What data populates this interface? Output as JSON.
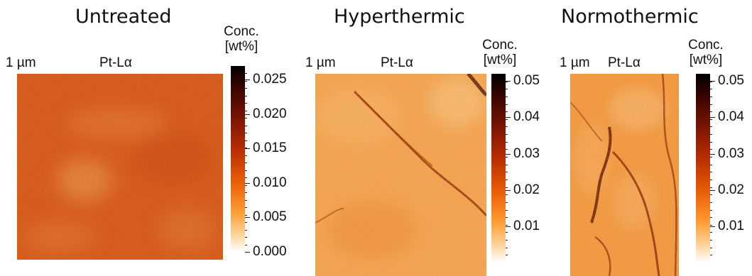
{
  "chart_data": [
    {
      "type": "heatmap",
      "title": "Untreated",
      "scale_bar": "1 µm",
      "map_label": "Pt-Lα",
      "colorbar_title": [
        "Conc.",
        "[wt%]"
      ],
      "colorbar_range": [
        0.0,
        0.027
      ],
      "colorbar_ticks": [
        "0.000",
        "0.005",
        "0.010",
        "0.015",
        "0.020",
        "0.025"
      ],
      "colormap": "white-orange-red-black",
      "colors": {
        "low": "#ffffff",
        "mid": "#e2591a",
        "high": "#000000"
      }
    },
    {
      "type": "heatmap",
      "title": "Hyperthermic",
      "scale_bar": "1 µm",
      "map_label": "Pt-Lα",
      "colorbar_title": [
        "Conc.",
        "[wt%]"
      ],
      "colorbar_range": [
        0.0,
        0.052
      ],
      "colorbar_ticks": [
        "0.01",
        "0.02",
        "0.03",
        "0.04",
        "0.05"
      ],
      "colormap": "white-orange-red-black",
      "colors": {
        "low": "#ffffff",
        "mid": "#f0953f",
        "high": "#000000"
      }
    },
    {
      "type": "heatmap",
      "title": "Normothermic",
      "scale_bar": "1 µm",
      "map_label": "Pt-Lα",
      "colorbar_title": [
        "Conc.",
        "[wt%]"
      ],
      "colorbar_range": [
        0.0,
        0.052
      ],
      "colorbar_ticks": [
        "0.01",
        "0.02",
        "0.03",
        "0.04",
        "0.05"
      ],
      "colormap": "white-orange-red-black",
      "colors": {
        "low": "#ffffff",
        "mid": "#ee8a33",
        "high": "#000000"
      }
    }
  ]
}
